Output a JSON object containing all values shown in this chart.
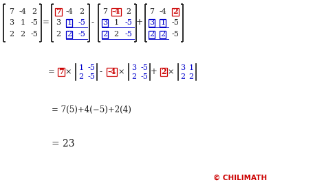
{
  "bg_color": "#ffffff",
  "black_color": "#1a1a1a",
  "red_color": "#cc0000",
  "blue_color": "#0000cc",
  "figsize": [
    4.74,
    2.76
  ],
  "dpi": 100
}
